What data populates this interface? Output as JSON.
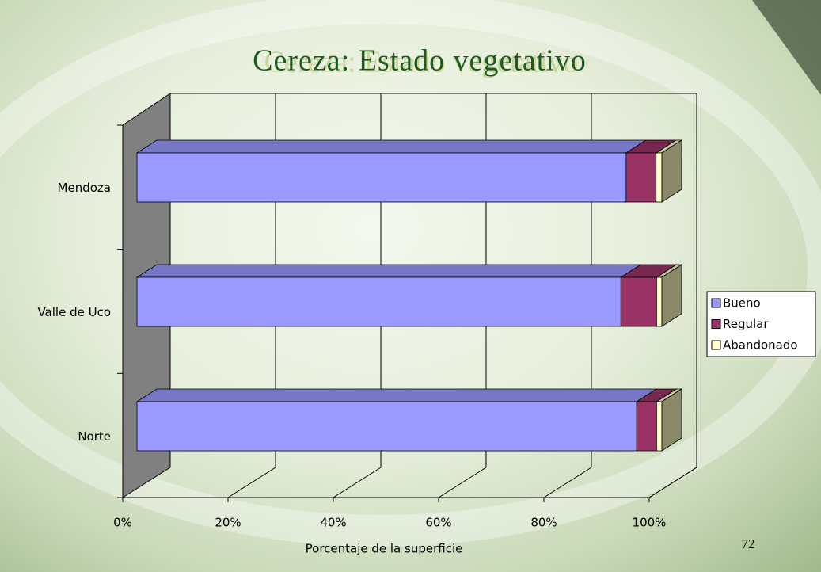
{
  "chart_data": {
    "type": "bar3d-stacked-h",
    "title": "Cereza: Estado vegetativo",
    "x_label": "Porcentaje de la superficie",
    "page_number": "72",
    "categories": [
      "Mendoza",
      "Valle de Uco",
      "Norte"
    ],
    "series": [
      {
        "name": "Bueno",
        "color": "#9999ff",
        "values": [
          93.2,
          92.2,
          95.2
        ]
      },
      {
        "name": "Regular",
        "color": "#993366",
        "values": [
          5.7,
          6.8,
          3.8
        ]
      },
      {
        "name": "Abandonado",
        "color": "#ffffcc",
        "values": [
          1.1,
          1.0,
          1.0
        ]
      }
    ],
    "xlim": [
      0,
      100
    ],
    "xticks": [
      {
        "value": 0,
        "label": "0%"
      },
      {
        "value": 20,
        "label": "20%"
      },
      {
        "value": 40,
        "label": "40%"
      },
      {
        "value": 60,
        "label": "60%"
      },
      {
        "value": 80,
        "label": "80%"
      },
      {
        "value": 100,
        "label": "100%"
      }
    ],
    "grid": true,
    "legend": "right"
  }
}
